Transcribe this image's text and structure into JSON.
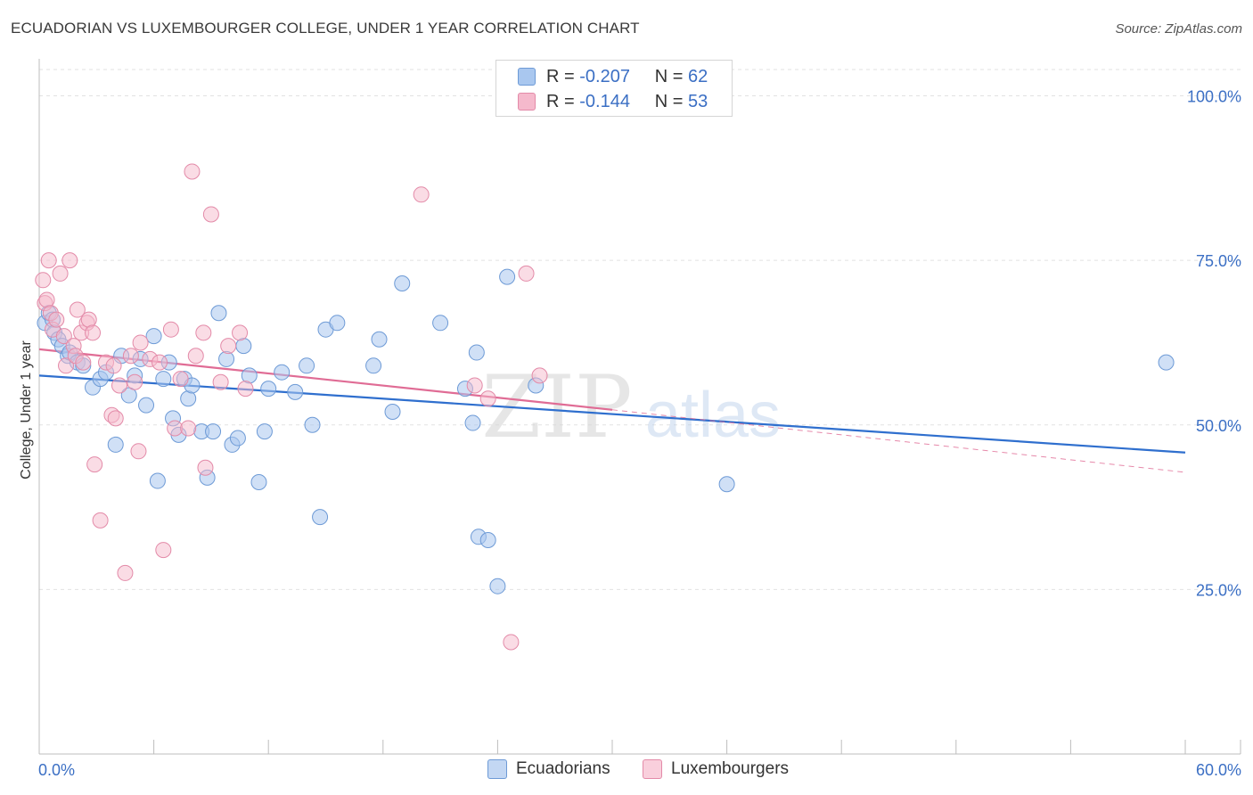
{
  "header": {
    "title": "ECUADORIAN VS LUXEMBOURGER COLLEGE, UNDER 1 YEAR CORRELATION CHART",
    "source": "Source: ZipAtlas.com"
  },
  "legend_top": {
    "rows": [
      {
        "r_label": "R =",
        "r_value": "-0.207",
        "n_label": "N =",
        "n_value": "62"
      },
      {
        "r_label": "R =",
        "r_value": "-0.144",
        "n_label": "N =",
        "n_value": "53"
      }
    ]
  },
  "legend_bottom": {
    "items": [
      "Ecuadorians",
      "Luxembourgers"
    ]
  },
  "watermark": {
    "zip": "ZIP",
    "atlas": "atlas"
  },
  "colors": {
    "ecuadorian_fill": "#a9c7ef",
    "ecuadorian_stroke": "#6d9ad6",
    "ecuadorian_line": "#2f6fce",
    "luxembourger_fill": "#f5b9cc",
    "luxembourger_stroke": "#e38aa8",
    "luxembourger_line": "#e06c95",
    "axis_label": "#3b6fc4",
    "grid": "#e2e2e2"
  },
  "chart_data": {
    "type": "scatter",
    "title": "ECUADORIAN VS LUXEMBOURGER COLLEGE, UNDER 1 YEAR CORRELATION CHART",
    "xlabel": "",
    "ylabel": "College, Under 1 year",
    "xlim": [
      0,
      60
    ],
    "ylim": [
      0,
      104
    ],
    "x_tick_labels": [
      "0.0%",
      "60.0%"
    ],
    "y_ticks": [
      25,
      50,
      75,
      100
    ],
    "y_tick_labels": [
      "25.0%",
      "50.0%",
      "75.0%",
      "100.0%"
    ],
    "grid": true,
    "legend_position": "top-center",
    "series": [
      {
        "name": "Ecuadorians",
        "r": -0.207,
        "n": 62,
        "trend": {
          "x": [
            0,
            60
          ],
          "y": [
            57.5,
            45.8
          ],
          "style": "solid"
        },
        "points": [
          [
            0.3,
            65.5
          ],
          [
            0.5,
            67
          ],
          [
            0.7,
            66
          ],
          [
            0.8,
            64
          ],
          [
            1.0,
            63
          ],
          [
            1.2,
            62
          ],
          [
            1.5,
            60.5
          ],
          [
            1.6,
            61
          ],
          [
            2.0,
            59.5
          ],
          [
            2.3,
            59
          ],
          [
            2.8,
            55.7
          ],
          [
            3.2,
            57
          ],
          [
            3.5,
            58
          ],
          [
            4.0,
            47
          ],
          [
            4.3,
            60.5
          ],
          [
            4.7,
            54.5
          ],
          [
            5.0,
            57.5
          ],
          [
            5.3,
            60
          ],
          [
            5.6,
            53
          ],
          [
            6.0,
            63.5
          ],
          [
            6.2,
            41.5
          ],
          [
            6.5,
            57
          ],
          [
            6.8,
            59.5
          ],
          [
            7.0,
            51
          ],
          [
            7.3,
            48.5
          ],
          [
            7.6,
            57
          ],
          [
            7.8,
            54
          ],
          [
            8.0,
            56
          ],
          [
            8.5,
            49
          ],
          [
            8.8,
            42
          ],
          [
            9.1,
            49
          ],
          [
            9.4,
            67
          ],
          [
            9.8,
            60
          ],
          [
            10.1,
            47
          ],
          [
            10.4,
            48
          ],
          [
            10.7,
            62
          ],
          [
            11.0,
            57.5
          ],
          [
            11.5,
            41.3
          ],
          [
            11.8,
            49
          ],
          [
            12.0,
            55.5
          ],
          [
            12.7,
            58
          ],
          [
            13.4,
            55
          ],
          [
            14.0,
            59
          ],
          [
            14.3,
            50
          ],
          [
            14.7,
            36
          ],
          [
            15.0,
            64.5
          ],
          [
            15.6,
            65.5
          ],
          [
            17.5,
            59
          ],
          [
            17.8,
            63
          ],
          [
            18.5,
            52
          ],
          [
            19.0,
            71.5
          ],
          [
            21.0,
            65.5
          ],
          [
            22.3,
            55.5
          ],
          [
            22.7,
            50.3
          ],
          [
            22.9,
            61
          ],
          [
            23.0,
            33
          ],
          [
            23.5,
            32.5
          ],
          [
            24.0,
            25.5
          ],
          [
            24.5,
            72.5
          ],
          [
            26.0,
            56
          ],
          [
            36.0,
            41
          ],
          [
            59.0,
            59.5
          ]
        ]
      },
      {
        "name": "Luxembourgers",
        "r": -0.144,
        "n": 53,
        "trend": {
          "x": [
            0,
            30
          ],
          "y": [
            61.5,
            52.3
          ],
          "style": "solid",
          "extension": {
            "x": [
              30,
              60
            ],
            "y": [
              52.3,
              42.8
            ],
            "style": "dashed"
          }
        },
        "points": [
          [
            0.2,
            72
          ],
          [
            0.3,
            68.5
          ],
          [
            0.4,
            69
          ],
          [
            0.5,
            75
          ],
          [
            0.6,
            67
          ],
          [
            0.7,
            64.5
          ],
          [
            0.9,
            66
          ],
          [
            1.1,
            73
          ],
          [
            1.3,
            63.5
          ],
          [
            1.4,
            59
          ],
          [
            1.6,
            75
          ],
          [
            1.8,
            62
          ],
          [
            1.9,
            60.5
          ],
          [
            2.0,
            67.5
          ],
          [
            2.2,
            64
          ],
          [
            2.3,
            59.5
          ],
          [
            2.5,
            65.5
          ],
          [
            2.6,
            66
          ],
          [
            2.8,
            64
          ],
          [
            2.9,
            44
          ],
          [
            3.2,
            35.5
          ],
          [
            3.5,
            59.5
          ],
          [
            3.8,
            51.5
          ],
          [
            3.9,
            59
          ],
          [
            4.0,
            51
          ],
          [
            4.2,
            56
          ],
          [
            4.5,
            27.5
          ],
          [
            4.8,
            60.5
          ],
          [
            5.0,
            56.5
          ],
          [
            5.2,
            46
          ],
          [
            5.3,
            62.5
          ],
          [
            5.8,
            60
          ],
          [
            6.3,
            59.5
          ],
          [
            6.5,
            31
          ],
          [
            6.9,
            64.5
          ],
          [
            7.1,
            49.5
          ],
          [
            7.4,
            57
          ],
          [
            7.8,
            49.5
          ],
          [
            8.0,
            88.5
          ],
          [
            8.2,
            60.5
          ],
          [
            8.6,
            64
          ],
          [
            8.7,
            43.5
          ],
          [
            9.0,
            82
          ],
          [
            9.5,
            56.5
          ],
          [
            9.9,
            62
          ],
          [
            10.5,
            64
          ],
          [
            10.8,
            55.5
          ],
          [
            20.0,
            85
          ],
          [
            22.8,
            56
          ],
          [
            23.5,
            54
          ],
          [
            24.7,
            17
          ],
          [
            25.5,
            73
          ],
          [
            26.2,
            57.5
          ]
        ]
      }
    ]
  }
}
